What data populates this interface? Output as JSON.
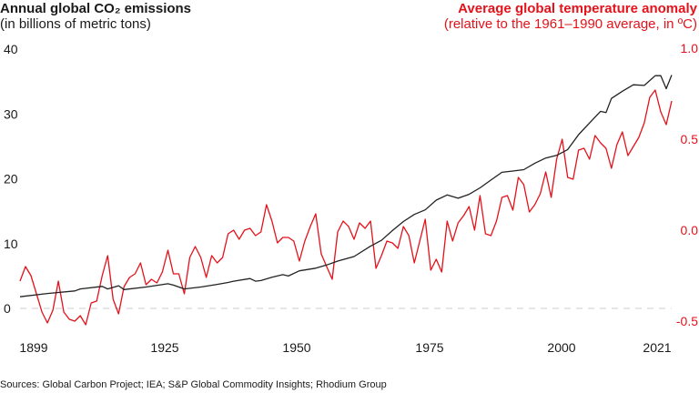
{
  "chart_data": {
    "type": "line",
    "left_title": "Annual global CO₂ emissions",
    "left_subtitle": "(in billions of metric tons)",
    "right_title": "Average global temperature anomaly",
    "right_subtitle": "(relative to the 1961–1990 average, in ºC)",
    "source": "Sources: Global Carbon Project; IEA; S&P Global Commodity Insights; Rhodium Group",
    "x_ticks": [
      "1899",
      "1925",
      "1950",
      "1975",
      "2000",
      "2021"
    ],
    "left_ticks": [
      "0",
      "10",
      "20",
      "30",
      "40"
    ],
    "right_ticks": [
      "-0.5",
      "0.0",
      "0.5",
      "1.0"
    ],
    "left_ylim": [
      -2,
      40
    ],
    "right_ylim": [
      -0.5,
      1.0
    ],
    "grid": false,
    "zero_line": "dashed",
    "colors": {
      "emissions": "#222222",
      "temperature": "#e3121b",
      "zero_line": "#dddddd"
    },
    "emissions": {
      "axis": "left",
      "points": [
        [
          1902,
          1.8
        ],
        [
          1907,
          2.3
        ],
        [
          1912,
          2.7
        ],
        [
          1913,
          3.0
        ],
        [
          1917,
          3.4
        ],
        [
          1918,
          3.0
        ],
        [
          1920,
          3.5
        ],
        [
          1921,
          2.9
        ],
        [
          1925,
          3.3
        ],
        [
          1929,
          3.8
        ],
        [
          1930,
          3.6
        ],
        [
          1932,
          3.0
        ],
        [
          1935,
          3.3
        ],
        [
          1938,
          3.7
        ],
        [
          1940,
          4.0
        ],
        [
          1941,
          4.2
        ],
        [
          1944,
          4.6
        ],
        [
          1945,
          4.2
        ],
        [
          1946,
          4.3
        ],
        [
          1948,
          4.8
        ],
        [
          1950,
          5.2
        ],
        [
          1951,
          5.0
        ],
        [
          1953,
          5.8
        ],
        [
          1956,
          6.2
        ],
        [
          1958,
          6.7
        ],
        [
          1960,
          7.3
        ],
        [
          1963,
          8.0
        ],
        [
          1966,
          9.6
        ],
        [
          1968,
          10.5
        ],
        [
          1970,
          12.0
        ],
        [
          1972,
          13.4
        ],
        [
          1974,
          14.5
        ],
        [
          1976,
          15.2
        ],
        [
          1978,
          16.7
        ],
        [
          1980,
          17.5
        ],
        [
          1982,
          17.0
        ],
        [
          1984,
          17.6
        ],
        [
          1986,
          18.6
        ],
        [
          1988,
          19.8
        ],
        [
          1990,
          21.0
        ],
        [
          1992,
          21.2
        ],
        [
          1994,
          21.4
        ],
        [
          1996,
          22.4
        ],
        [
          1998,
          23.2
        ],
        [
          2000,
          23.6
        ],
        [
          2002,
          24.5
        ],
        [
          2004,
          26.8
        ],
        [
          2006,
          28.6
        ],
        [
          2008,
          30.4
        ],
        [
          2009,
          30.2
        ],
        [
          2010,
          32.4
        ],
        [
          2012,
          33.5
        ],
        [
          2014,
          34.5
        ],
        [
          2016,
          34.4
        ],
        [
          2018,
          35.9
        ],
        [
          2019,
          35.9
        ],
        [
          2020,
          33.9
        ],
        [
          2021,
          36.0
        ]
      ]
    },
    "temperature": {
      "axis": "right",
      "x": [
        1902,
        1903,
        1904,
        1905,
        1906,
        1907,
        1908,
        1909,
        1910,
        1911,
        1912,
        1913,
        1914,
        1915,
        1916,
        1917,
        1918,
        1919,
        1920,
        1921,
        1922,
        1923,
        1924,
        1925,
        1926,
        1927,
        1928,
        1929,
        1930,
        1931,
        1932,
        1933,
        1934,
        1935,
        1936,
        1937,
        1938,
        1939,
        1940,
        1941,
        1942,
        1943,
        1944,
        1945,
        1946,
        1947,
        1948,
        1949,
        1950,
        1951,
        1952,
        1953,
        1954,
        1955,
        1956,
        1957,
        1958,
        1959,
        1960,
        1961,
        1962,
        1963,
        1964,
        1965,
        1966,
        1967,
        1968,
        1969,
        1970,
        1971,
        1972,
        1973,
        1974,
        1975,
        1976,
        1977,
        1978,
        1979,
        1980,
        1981,
        1982,
        1983,
        1984,
        1985,
        1986,
        1987,
        1988,
        1989,
        1990,
        1991,
        1992,
        1993,
        1994,
        1995,
        1996,
        1997,
        1998,
        1999,
        2000,
        2001,
        2002,
        2003,
        2004,
        2005,
        2006,
        2007,
        2008,
        2009,
        2010,
        2011,
        2012,
        2013,
        2014,
        2015,
        2016,
        2017,
        2018,
        2019,
        2020,
        2021
      ],
      "values": [
        -0.28,
        -0.2,
        -0.25,
        -0.35,
        -0.45,
        -0.51,
        -0.44,
        -0.28,
        -0.45,
        -0.49,
        -0.5,
        -0.47,
        -0.52,
        -0.4,
        -0.39,
        -0.25,
        -0.14,
        -0.38,
        -0.46,
        -0.31,
        -0.26,
        -0.24,
        -0.18,
        -0.3,
        -0.27,
        -0.29,
        -0.23,
        -0.11,
        -0.24,
        -0.24,
        -0.35,
        -0.15,
        -0.09,
        -0.15,
        -0.26,
        -0.14,
        -0.18,
        -0.15,
        -0.02,
        0.0,
        -0.05,
        0.0,
        0.01,
        -0.03,
        -0.01,
        0.14,
        0.05,
        -0.07,
        -0.04,
        -0.04,
        -0.06,
        -0.17,
        -0.06,
        0.02,
        0.09,
        -0.13,
        -0.2,
        -0.27,
        -0.01,
        0.05,
        0.02,
        -0.05,
        0.04,
        0.01,
        0.05,
        -0.21,
        -0.14,
        -0.06,
        -0.07,
        -0.1,
        0.02,
        -0.03,
        -0.18,
        -0.06,
        0.06,
        -0.22,
        -0.16,
        -0.23,
        0.05,
        -0.06,
        0.04,
        0.08,
        0.13,
        0.0,
        0.19,
        -0.02,
        -0.03,
        0.05,
        0.18,
        0.19,
        0.11,
        0.29,
        0.25,
        0.1,
        0.14,
        0.2,
        0.32,
        0.18,
        0.39,
        0.5,
        0.29,
        0.28,
        0.44,
        0.45,
        0.39,
        0.52,
        0.48,
        0.45,
        0.34,
        0.47,
        0.54,
        0.41,
        0.46,
        0.51,
        0.59,
        0.73,
        0.77,
        0.65,
        0.58,
        0.71
      ]
    }
  }
}
